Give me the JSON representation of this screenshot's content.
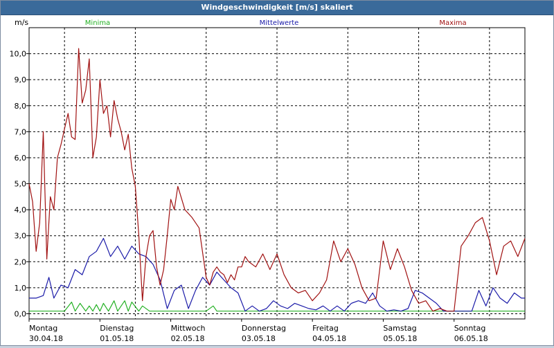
{
  "window": {
    "title": "Windgeschwindigkeit [m/s] skaliert"
  },
  "legend": {
    "items": [
      {
        "label": "Minima",
        "color": "#22b022"
      },
      {
        "label": "Mittelwerte",
        "color": "#1a1aa8"
      },
      {
        "label": "Maxima",
        "color": "#a01010"
      }
    ]
  },
  "chart_data": {
    "type": "line",
    "title": "Windgeschwindigkeit [m/s] skaliert",
    "ylabel": "m/s",
    "ylim": [
      -0.2,
      11.0
    ],
    "yticks": [
      "0,0",
      "1,0",
      "2,0",
      "3,0",
      "4,0",
      "5,0",
      "6,0",
      "7,0",
      "8,0",
      "9,0",
      "10,0"
    ],
    "xlim": [
      0,
      7
    ],
    "xticks": [
      {
        "day": "Montag",
        "date": "30.04.18"
      },
      {
        "day": "Dienstag",
        "date": "01.05.18"
      },
      {
        "day": "Mittwoch",
        "date": "02.05.18"
      },
      {
        "day": "Donnerstag",
        "date": "03.05.18"
      },
      {
        "day": "Freitag",
        "date": "04.05.18"
      },
      {
        "day": "Samstag",
        "date": "05.05.18"
      },
      {
        "day": "Sonntag",
        "date": "06.05.18"
      }
    ],
    "grid": true,
    "legend_position": "top",
    "series": [
      {
        "name": "Minima",
        "color": "#22b022",
        "x": [
          0,
          0.5,
          0.6,
          0.65,
          0.72,
          0.8,
          0.85,
          0.9,
          0.95,
          1.0,
          1.05,
          1.12,
          1.2,
          1.25,
          1.35,
          1.4,
          1.45,
          1.55,
          1.6,
          1.7,
          2.5,
          2.6,
          2.65,
          3.5,
          7.0
        ],
        "values": [
          0.1,
          0.1,
          0.45,
          0.1,
          0.4,
          0.1,
          0.3,
          0.1,
          0.35,
          0.1,
          0.4,
          0.1,
          0.5,
          0.1,
          0.5,
          0.1,
          0.45,
          0.1,
          0.3,
          0.1,
          0.1,
          0.3,
          0.1,
          0.1,
          0.1
        ]
      },
      {
        "name": "Mittelwerte",
        "color": "#1a1aa8",
        "x": [
          0,
          0.1,
          0.2,
          0.28,
          0.35,
          0.45,
          0.55,
          0.65,
          0.75,
          0.85,
          0.95,
          1.05,
          1.15,
          1.25,
          1.35,
          1.45,
          1.55,
          1.65,
          1.75,
          1.85,
          1.95,
          2.05,
          2.15,
          2.25,
          2.35,
          2.45,
          2.55,
          2.65,
          2.75,
          2.85,
          2.95,
          3.05,
          3.15,
          3.25,
          3.35,
          3.45,
          3.55,
          3.65,
          3.75,
          3.85,
          3.95,
          4.05,
          4.15,
          4.25,
          4.35,
          4.45,
          4.55,
          4.65,
          4.75,
          4.85,
          4.95,
          5.05,
          5.15,
          5.25,
          5.35,
          5.45,
          5.55,
          5.65,
          5.75,
          5.85,
          5.95,
          6.05,
          6.15,
          6.25,
          6.35,
          6.45,
          6.55,
          6.65,
          6.75,
          6.85,
          6.95,
          7.0
        ],
        "values": [
          0.6,
          0.6,
          0.7,
          1.4,
          0.6,
          1.1,
          1.0,
          1.7,
          1.5,
          2.2,
          2.4,
          2.9,
          2.2,
          2.6,
          2.1,
          2.6,
          2.3,
          2.2,
          1.9,
          1.3,
          0.2,
          0.9,
          1.1,
          0.2,
          0.9,
          1.4,
          1.1,
          1.6,
          1.3,
          1.0,
          0.8,
          0.1,
          0.3,
          0.1,
          0.2,
          0.5,
          0.3,
          0.2,
          0.4,
          0.3,
          0.2,
          0.15,
          0.3,
          0.1,
          0.3,
          0.1,
          0.4,
          0.5,
          0.4,
          0.8,
          0.3,
          0.1,
          0.15,
          0.1,
          0.2,
          0.9,
          0.8,
          0.6,
          0.4,
          0.1,
          0.1,
          0.1,
          0.1,
          0.1,
          0.9,
          0.3,
          1.0,
          0.6,
          0.4,
          0.8,
          0.6,
          0.6
        ]
      },
      {
        "name": "Maxima",
        "color": "#a01010",
        "x": [
          0,
          0.05,
          0.1,
          0.15,
          0.2,
          0.25,
          0.3,
          0.35,
          0.4,
          0.45,
          0.5,
          0.55,
          0.6,
          0.65,
          0.7,
          0.75,
          0.8,
          0.85,
          0.9,
          0.95,
          1.0,
          1.05,
          1.1,
          1.15,
          1.2,
          1.25,
          1.3,
          1.35,
          1.4,
          1.45,
          1.5,
          1.55,
          1.6,
          1.65,
          1.7,
          1.75,
          1.8,
          1.85,
          1.9,
          1.95,
          2.0,
          2.05,
          2.1,
          2.2,
          2.3,
          2.4,
          2.5,
          2.55,
          2.6,
          2.65,
          2.7,
          2.75,
          2.8,
          2.85,
          2.9,
          2.95,
          3.0,
          3.05,
          3.1,
          3.2,
          3.3,
          3.4,
          3.5,
          3.6,
          3.7,
          3.8,
          3.9,
          4.0,
          4.1,
          4.2,
          4.3,
          4.4,
          4.5,
          4.6,
          4.7,
          4.8,
          4.9,
          5.0,
          5.1,
          5.2,
          5.3,
          5.4,
          5.5,
          5.6,
          5.7,
          5.8,
          5.9,
          6.0,
          6.1,
          6.2,
          6.3,
          6.4,
          6.5,
          6.6,
          6.7,
          6.8,
          6.9,
          7.0
        ],
        "values": [
          5.0,
          4.3,
          2.4,
          3.5,
          7.0,
          2.1,
          4.5,
          4.0,
          6.0,
          6.5,
          7.1,
          7.7,
          6.8,
          6.7,
          10.2,
          8.1,
          8.6,
          9.8,
          6.0,
          6.8,
          9.0,
          7.7,
          8.0,
          6.8,
          8.2,
          7.5,
          7.0,
          6.3,
          6.9,
          5.6,
          4.9,
          3.0,
          0.5,
          2.2,
          3.0,
          3.2,
          1.8,
          1.1,
          1.7,
          3.0,
          4.4,
          4.0,
          4.9,
          4.0,
          3.7,
          3.3,
          1.4,
          1.1,
          1.6,
          1.8,
          1.6,
          1.5,
          1.2,
          1.5,
          1.3,
          1.8,
          1.8,
          2.2,
          2.0,
          1.8,
          2.3,
          1.7,
          2.3,
          1.5,
          1.0,
          0.8,
          0.9,
          0.5,
          0.8,
          1.3,
          2.8,
          2.0,
          2.5,
          1.9,
          1.0,
          0.5,
          0.6,
          2.8,
          1.7,
          2.5,
          1.8,
          0.9,
          0.4,
          0.5,
          0.1,
          0.2,
          0.1,
          0.1,
          2.6,
          3.0,
          3.5,
          3.7,
          2.8,
          1.5,
          2.6,
          2.8,
          2.2,
          2.9
        ]
      }
    ]
  }
}
